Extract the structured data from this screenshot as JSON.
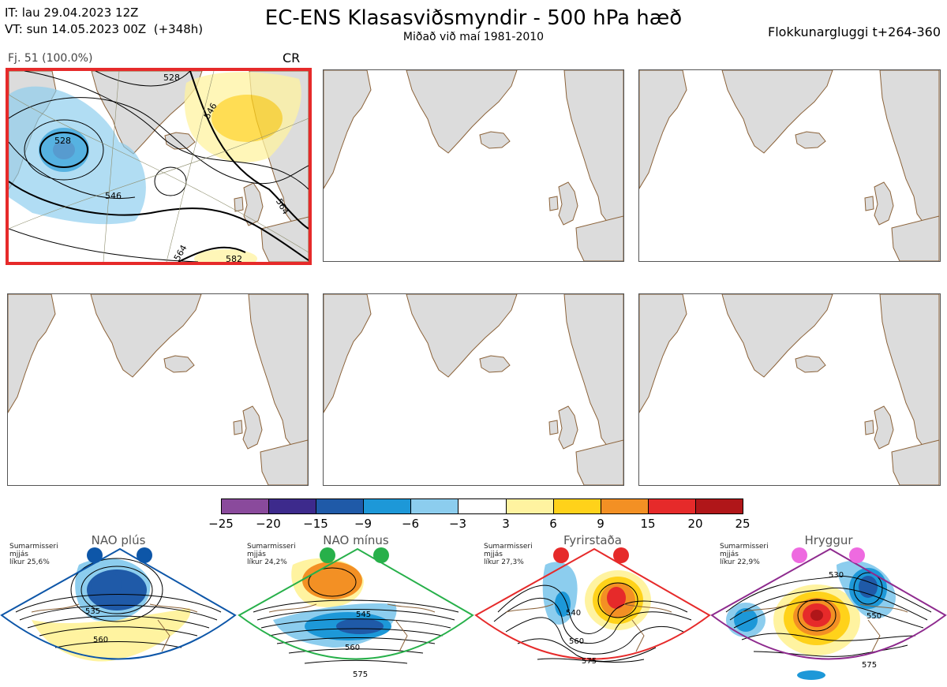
{
  "header": {
    "it_line": "IT: lau 29.04.2023 12Z",
    "vt_line": "VT: sun 14.05.2023 00Z  (+348h)",
    "title": "EC-ENS Klasasviðsmyndir - 500 hPa hæð",
    "subtitle": "Miðað við maí 1981-2010",
    "window": "Flokkunargluggi t+264-360"
  },
  "selected_panel": {
    "label": "Fj. 51 (100.0%)",
    "regime_code": "CR",
    "contour_labels": [
      "528",
      "546",
      "546",
      "564",
      "564",
      "582",
      "528"
    ]
  },
  "colors": {
    "land": "#dcdcdc",
    "coast": "#8b6239",
    "selected_border": "#e62a2a",
    "anomaly_scale": [
      "#8a4a9c",
      "#3d2a8c",
      "#1f5aa8",
      "#1d98d8",
      "#8ccdee",
      "#ffffff",
      "#fff3a0",
      "#ffd21a",
      "#f39024",
      "#e62a2a",
      "#b01619"
    ]
  },
  "colorbar": {
    "ticks": [
      "−25",
      "−20",
      "−15",
      "−9",
      "−6",
      "−3",
      "3",
      "6",
      "9",
      "15",
      "20",
      "25"
    ]
  },
  "regimes": [
    {
      "name": "NAO plús",
      "season": "Sumarmisseri",
      "time": "mjjás",
      "prob": "líkur 25,6%",
      "color": "#0d56a8",
      "labels": [
        "535",
        "560"
      ]
    },
    {
      "name": "NAO mínus",
      "season": "Sumarmisseri",
      "time": "mjjás",
      "prob": "líkur 24,2%",
      "color": "#27b04a",
      "labels": [
        "545",
        "560",
        "575"
      ]
    },
    {
      "name": "Fyrirstaða",
      "season": "Sumarmisseri",
      "time": "mjjás",
      "prob": "líkur 27,3%",
      "color": "#e62a2a",
      "labels": [
        "540",
        "560",
        "575"
      ]
    },
    {
      "name": "Hryggur",
      "season": "Sumarmisseri",
      "time": "mjjás",
      "prob": "líkur 22,9%",
      "color": "#ee6ae0",
      "labels": [
        "530",
        "550",
        "575"
      ]
    }
  ]
}
